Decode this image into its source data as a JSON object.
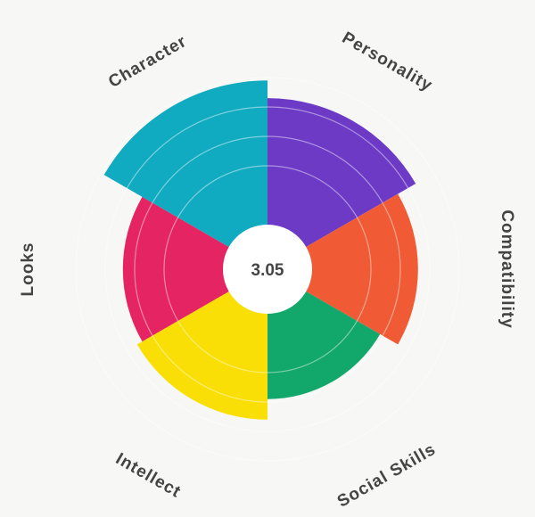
{
  "chart_data": {
    "type": "polar-area",
    "center_value": "3.05",
    "categories": [
      "Personality",
      "Compatibility",
      "Social Skills",
      "Intellect",
      "Looks",
      "Character"
    ],
    "values": [
      4.3,
      3.6,
      2.9,
      3.6,
      3.4,
      4.9
    ],
    "colors": [
      "#6d3ac6",
      "#f05a35",
      "#12a86b",
      "#f9df05",
      "#e52563",
      "#10abc1"
    ],
    "rmax": 5,
    "grid": true,
    "grid_levels": [
      2,
      3,
      4,
      5
    ]
  }
}
